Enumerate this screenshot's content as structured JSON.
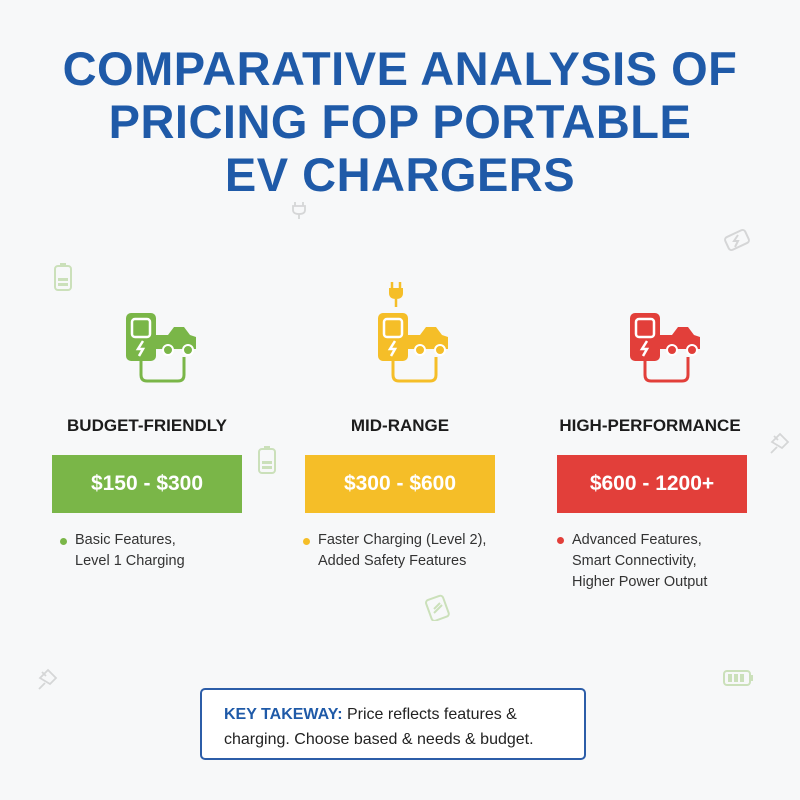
{
  "title": {
    "line1": "COMPARATIVE ANALYSIS OF",
    "line2": "PRICING FOP PORTABLE",
    "line3": "EV CHARGERS"
  },
  "colors": {
    "title": "#1f5aa8",
    "budget": "#7ab648",
    "mid": "#f5be28",
    "high": "#e23f3a"
  },
  "tiers": [
    {
      "name": "BUDGET-FRIENDLY",
      "price": "$150 - $300",
      "icon": "ev-charger-car-icon",
      "desc_line1": "Basic Features,",
      "desc_line2": "Level 1 Charging"
    },
    {
      "name": "MID-RANGE",
      "price": "$300 - $600",
      "icon": "ev-charger-car-icon",
      "desc_line1": "Faster Charging (Level 2),",
      "desc_line2": "Added Safety Features"
    },
    {
      "name": "HIGH-PERFORMANCE",
      "price": "$600 - 1200+",
      "icon": "ev-charger-car-icon",
      "desc_line1": "Advanced Features,",
      "desc_line2": "Smart Connectivity,",
      "desc_line3": "Higher Power Output"
    }
  ],
  "takeaway": {
    "label": "KEY TAKEWAY:",
    "text_line1": " Price reflects features &",
    "text_line2": "charging. Choose based & needs & budget."
  }
}
